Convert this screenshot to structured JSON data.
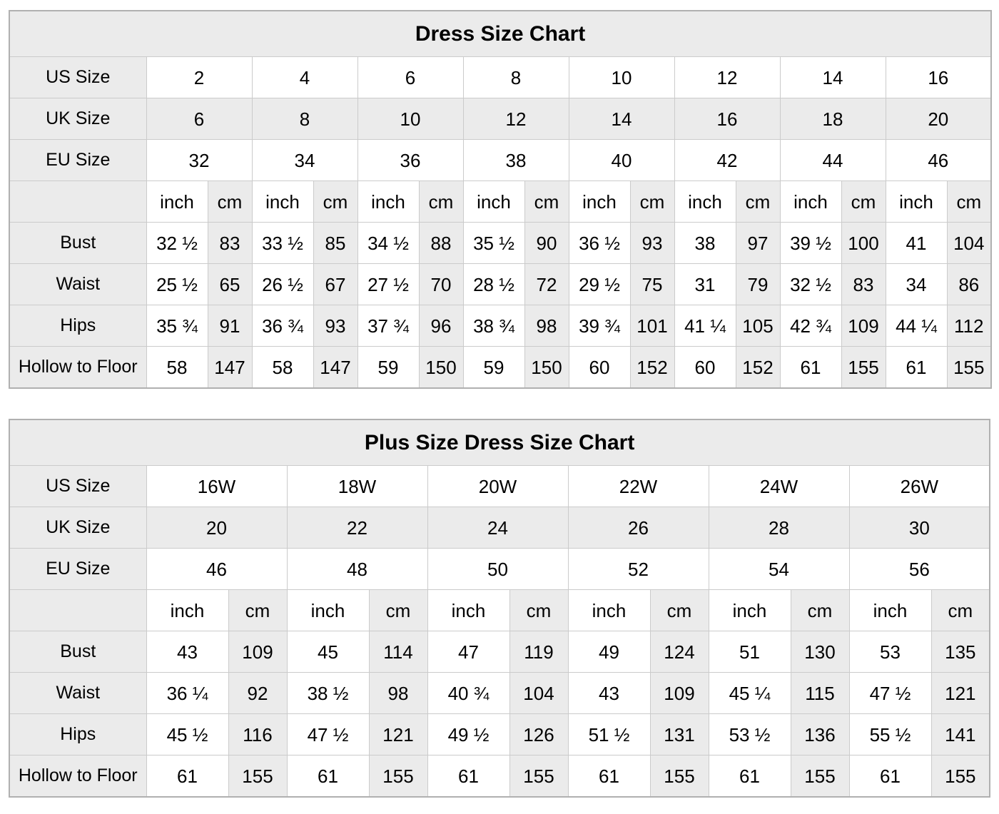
{
  "colors": {
    "shaded_cell_bg": "#ebebeb",
    "cell_border": "#cbcbcb",
    "outer_border": "#b0b0b0",
    "text": "#000000",
    "page_bg": "#ffffff"
  },
  "tables": [
    {
      "title": "Dress Size Chart",
      "size_rows": [
        {
          "label": "US Size",
          "shaded": false,
          "values": [
            "2",
            "4",
            "6",
            "8",
            "10",
            "12",
            "14",
            "16"
          ]
        },
        {
          "label": "UK Size",
          "shaded": true,
          "values": [
            "6",
            "8",
            "10",
            "12",
            "14",
            "16",
            "18",
            "20"
          ]
        },
        {
          "label": "EU Size",
          "shaded": false,
          "values": [
            "32",
            "34",
            "36",
            "38",
            "40",
            "42",
            "44",
            "46"
          ]
        }
      ],
      "unit_row": {
        "label": "",
        "units": [
          "inch",
          "cm"
        ]
      },
      "measurement_rows": [
        {
          "label": "Bust",
          "inch": [
            "32 ½",
            "33 ½",
            "34 ½",
            "35 ½",
            "36 ½",
            "38",
            "39 ½",
            "41"
          ],
          "cm": [
            "83",
            "85",
            "88",
            "90",
            "93",
            "97",
            "100",
            "104"
          ]
        },
        {
          "label": "Waist",
          "inch": [
            "25 ½",
            "26 ½",
            "27 ½",
            "28 ½",
            "29 ½",
            "31",
            "32 ½",
            "34"
          ],
          "cm": [
            "65",
            "67",
            "70",
            "72",
            "75",
            "79",
            "83",
            "86"
          ]
        },
        {
          "label": "Hips",
          "inch": [
            "35 ¾",
            "36 ¾",
            "37 ¾",
            "38 ¾",
            "39 ¾",
            "41 ¼",
            "42 ¾",
            "44 ¼"
          ],
          "cm": [
            "91",
            "93",
            "96",
            "98",
            "101",
            "105",
            "109",
            "112"
          ]
        },
        {
          "label": "Hollow to Floor",
          "inch": [
            "58",
            "58",
            "59",
            "59",
            "60",
            "60",
            "61",
            "61"
          ],
          "cm": [
            "147",
            "147",
            "150",
            "150",
            "152",
            "152",
            "155",
            "155"
          ]
        }
      ]
    },
    {
      "title": "Plus Size Dress Size Chart",
      "size_rows": [
        {
          "label": "US Size",
          "shaded": false,
          "values": [
            "16W",
            "18W",
            "20W",
            "22W",
            "24W",
            "26W"
          ]
        },
        {
          "label": "UK Size",
          "shaded": true,
          "values": [
            "20",
            "22",
            "24",
            "26",
            "28",
            "30"
          ]
        },
        {
          "label": "EU Size",
          "shaded": false,
          "values": [
            "46",
            "48",
            "50",
            "52",
            "54",
            "56"
          ]
        }
      ],
      "unit_row": {
        "label": "",
        "units": [
          "inch",
          "cm"
        ]
      },
      "measurement_rows": [
        {
          "label": "Bust",
          "inch": [
            "43",
            "45",
            "47",
            "49",
            "51",
            "53"
          ],
          "cm": [
            "109",
            "114",
            "119",
            "124",
            "130",
            "135"
          ]
        },
        {
          "label": "Waist",
          "inch": [
            "36 ¼",
            "38 ½",
            "40 ¾",
            "43",
            "45 ¼",
            "47 ½"
          ],
          "cm": [
            "92",
            "98",
            "104",
            "109",
            "115",
            "121"
          ]
        },
        {
          "label": "Hips",
          "inch": [
            "45 ½",
            "47 ½",
            "49 ½",
            "51 ½",
            "53 ½",
            "55 ½"
          ],
          "cm": [
            "116",
            "121",
            "126",
            "131",
            "136",
            "141"
          ]
        },
        {
          "label": "Hollow to Floor",
          "inch": [
            "61",
            "61",
            "61",
            "61",
            "61",
            "61"
          ],
          "cm": [
            "155",
            "155",
            "155",
            "155",
            "155",
            "155"
          ]
        }
      ]
    }
  ]
}
